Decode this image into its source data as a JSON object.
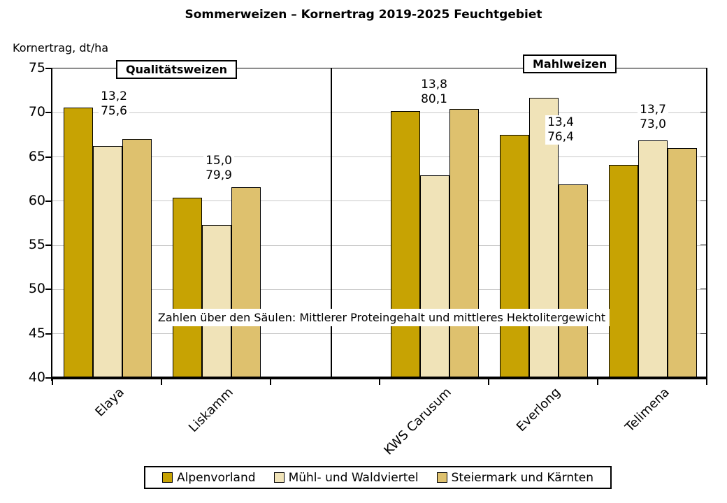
{
  "chart_data": {
    "type": "bar",
    "title": "Sommerweizen – Kornertrag 2019-2025 Feuchtgebiet",
    "ylabel": "Kornertrag, dt/ha",
    "xlabel": "",
    "ylim": [
      40,
      75
    ],
    "ytick_step": 5,
    "grid": true,
    "legend_position": "bottom",
    "categories": [
      "Elaya",
      "Liskamm",
      "KWS Carusum",
      "Everlong",
      "Telimena"
    ],
    "group_labels": [
      {
        "label": "Qualitätsweizen",
        "categories": [
          "Elaya",
          "Liskamm"
        ]
      },
      {
        "label": "Mahlweizen",
        "categories": [
          "KWS Carusum",
          "Everlong",
          "Telimena"
        ]
      }
    ],
    "series": [
      {
        "name": "Alpenvorland",
        "color": "#C7A303",
        "values": [
          70.6,
          60.4,
          70.2,
          67.5,
          64.1
        ]
      },
      {
        "name": "Mühl- und Waldviertel",
        "color": "#F0E3B8",
        "values": [
          66.2,
          57.3,
          62.9,
          71.7,
          66.9
        ]
      },
      {
        "name": "Steiermark und Kärnten",
        "color": "#DEC16E",
        "values": [
          67.0,
          61.6,
          70.4,
          61.9,
          66.0
        ]
      }
    ],
    "annotations": [
      {
        "category": "Elaya",
        "lines": [
          "13,2",
          "75,6"
        ]
      },
      {
        "category": "Liskamm",
        "lines": [
          "15,0",
          "79,9"
        ]
      },
      {
        "category": "KWS Carusum",
        "lines": [
          "13,8",
          "80,1"
        ]
      },
      {
        "category": "Everlong",
        "lines": [
          "13,4",
          "76,4"
        ]
      },
      {
        "category": "Telimena",
        "lines": [
          "13,7",
          "73,0"
        ]
      }
    ],
    "note": "Zahlen über den Säulen: Mittlerer Proteingehalt und mittleres Hektolitergewicht"
  }
}
